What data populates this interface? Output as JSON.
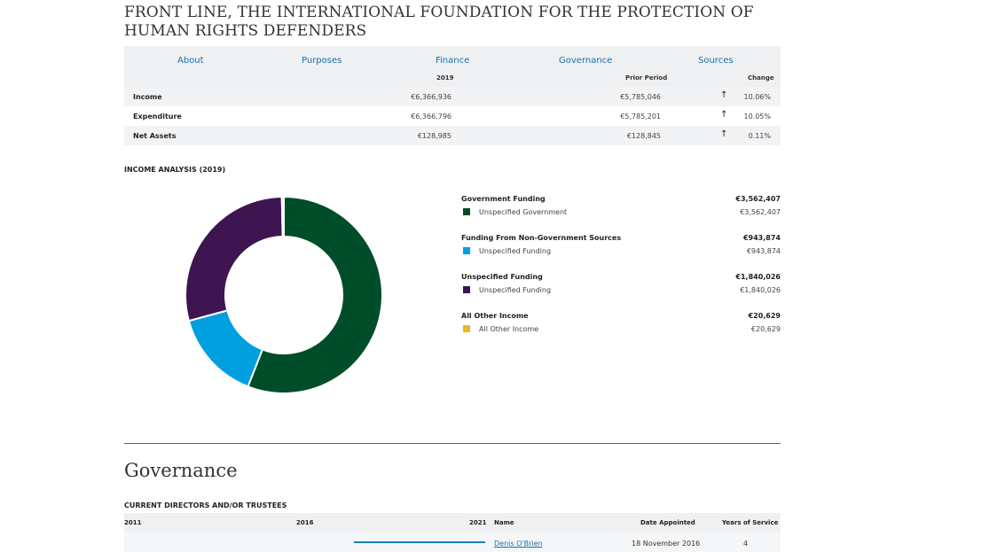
{
  "org": {
    "title": "FRONT LINE, THE INTERNATIONAL FOUNDATION FOR THE PROTECTION OF HUMAN RIGHTS DEFENDERS"
  },
  "tabs": [
    "About",
    "Purposes",
    "Finance",
    "Governance",
    "Sources"
  ],
  "finance_table": {
    "headers": {
      "year": "2019",
      "prior": "Prior Period",
      "change": "Change"
    },
    "rows": [
      {
        "label": "Income",
        "current": "€6,366,936",
        "prior": "€5,785,046",
        "arrow": "↑",
        "change": "10.06%"
      },
      {
        "label": "Expenditure",
        "current": "€6,366,796",
        "prior": "€5,785,201",
        "arrow": "↑",
        "change": "10.05%"
      },
      {
        "label": "Net Assets",
        "current": "€128,985",
        "prior": "€128,845",
        "arrow": "↑",
        "change": "0.11%"
      }
    ]
  },
  "income_analysis": {
    "label": "INCOME ANALYSIS (2019)",
    "groups": [
      {
        "heading": "Government Funding",
        "total": "€3,562,407",
        "item": "Unspecified Government",
        "item_value": "€3,562,407",
        "color": "#004d2a"
      },
      {
        "heading": "Funding From Non-Government Sources",
        "total": "€943,874",
        "item": "Unspecified Funding",
        "item_value": "€943,874",
        "color": "#009fdf"
      },
      {
        "heading": "Unspecified Funding",
        "total": "€1,840,026",
        "item": "Unspecified Funding",
        "item_value": "€1,840,026",
        "color": "#3e1550"
      },
      {
        "heading": "All Other Income",
        "total": "€20,629",
        "item": "All Other Income",
        "item_value": "€20,629",
        "color": "#f0b323"
      }
    ]
  },
  "chart_data": {
    "type": "pie",
    "categories": [
      "Unspecified Government",
      "Unspecified Funding (Non-Government)",
      "Unspecified Funding",
      "All Other Income"
    ],
    "values": [
      3562407,
      943874,
      1840026,
      20629
    ],
    "colors": [
      "#004d2a",
      "#009fdf",
      "#3e1550",
      "#f0b323"
    ],
    "donut": true
  },
  "governance": {
    "title": "Governance",
    "subtitle": "CURRENT DIRECTORS AND/OR TRUSTEES",
    "headers": {
      "y1": "2011",
      "y2": "2016",
      "y3": "2021",
      "name": "Name",
      "date": "Date Appointed",
      "years": "Years of Service"
    },
    "rows": [
      {
        "name": "Denis O'Brien",
        "date": "18 November 2016",
        "years": "4"
      }
    ]
  }
}
